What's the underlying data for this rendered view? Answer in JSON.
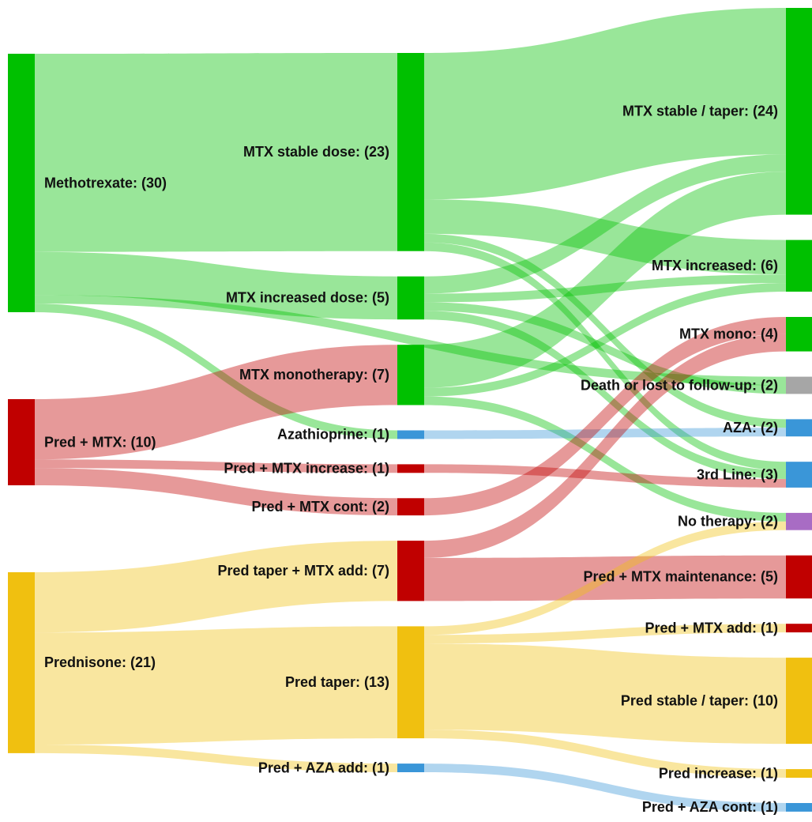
{
  "chart_data": {
    "type": "sankey",
    "nodes": [
      {
        "label": "Methotrexate: (30)",
        "value": 30,
        "color": "#00c000"
      },
      {
        "label": "Pred + MTX: (10)",
        "value": 10,
        "color": "#c00000"
      },
      {
        "label": "Prednisone: (21)",
        "value": 21,
        "color": "#f0c010"
      },
      {
        "label": "MTX stable dose: (23)",
        "value": 23,
        "color": "#00c000"
      },
      {
        "label": "MTX increased dose: (5)",
        "value": 5,
        "color": "#00c000"
      },
      {
        "label": "MTX monotherapy: (7)",
        "value": 7,
        "color": "#00c000"
      },
      {
        "label": "Azathioprine: (1)",
        "value": 1,
        "color": "#3a96d8"
      },
      {
        "label": "Pred + MTX increase: (1)",
        "value": 1,
        "color": "#c00000"
      },
      {
        "label": "Pred + MTX cont: (2)",
        "value": 2,
        "color": "#c00000"
      },
      {
        "label": "Pred taper + MTX add: (7)",
        "value": 7,
        "color": "#c00000"
      },
      {
        "label": "Pred taper: (13)",
        "value": 13,
        "color": "#f0c010"
      },
      {
        "label": "Pred + AZA add: (1)",
        "value": 1,
        "color": "#3a96d8"
      },
      {
        "label": "MTX stable / taper: (24)",
        "value": 24,
        "color": "#00c000"
      },
      {
        "label": "MTX increased: (6)",
        "value": 6,
        "color": "#00c000"
      },
      {
        "label": "MTX mono: (4)",
        "value": 4,
        "color": "#00c000"
      },
      {
        "label": "Death or lost to follow-up: (2)",
        "value": 2,
        "color": "#a6a6a6"
      },
      {
        "label": "AZA: (2)",
        "value": 2,
        "color": "#3a96d8"
      },
      {
        "label": "3rd Line: (3)",
        "value": 3,
        "color": "#3a96d8"
      },
      {
        "label": "No therapy: (2)",
        "value": 2,
        "color": "#a86cc4"
      },
      {
        "label": "Pred + MTX maintenance: (5)",
        "value": 5,
        "color": "#c00000"
      },
      {
        "label": "Pred + MTX add: (1)",
        "value": 1,
        "color": "#c00000"
      },
      {
        "label": "Pred stable / taper: (10)",
        "value": 10,
        "color": "#f0c010"
      },
      {
        "label": "Pred increase: (1)",
        "value": 1,
        "color": "#f0c010"
      },
      {
        "label": "Pred + AZA cont: (1)",
        "value": 1,
        "color": "#3a96d8"
      }
    ],
    "links": [
      {
        "source": 0,
        "target": 3,
        "value": 23
      },
      {
        "source": 0,
        "target": 4,
        "value": 5
      },
      {
        "source": 0,
        "target": 15,
        "value": 1
      },
      {
        "source": 0,
        "target": 6,
        "value": 1
      },
      {
        "source": 1,
        "target": 5,
        "value": 7
      },
      {
        "source": 1,
        "target": 7,
        "value": 1
      },
      {
        "source": 1,
        "target": 8,
        "value": 2
      },
      {
        "source": 2,
        "target": 9,
        "value": 7
      },
      {
        "source": 2,
        "target": 10,
        "value": 13
      },
      {
        "source": 2,
        "target": 11,
        "value": 1
      },
      {
        "source": 3,
        "target": 12,
        "value": 17
      },
      {
        "source": 3,
        "target": 13,
        "value": 4
      },
      {
        "source": 3,
        "target": 16,
        "value": 1
      },
      {
        "source": 3,
        "target": 17,
        "value": 1
      },
      {
        "source": 4,
        "target": 12,
        "value": 2
      },
      {
        "source": 4,
        "target": 13,
        "value": 1
      },
      {
        "source": 4,
        "target": 15,
        "value": 1
      },
      {
        "source": 4,
        "target": 17,
        "value": 1
      },
      {
        "source": 5,
        "target": 12,
        "value": 5
      },
      {
        "source": 5,
        "target": 13,
        "value": 1
      },
      {
        "source": 5,
        "target": 18,
        "value": 1
      },
      {
        "source": 6,
        "target": 16,
        "value": 1
      },
      {
        "source": 7,
        "target": 17,
        "value": 1
      },
      {
        "source": 8,
        "target": 14,
        "value": 2
      },
      {
        "source": 9,
        "target": 14,
        "value": 2
      },
      {
        "source": 9,
        "target": 19,
        "value": 5
      },
      {
        "source": 10,
        "target": 18,
        "value": 1
      },
      {
        "source": 10,
        "target": 20,
        "value": 1
      },
      {
        "source": 10,
        "target": 21,
        "value": 10
      },
      {
        "source": 10,
        "target": 22,
        "value": 1
      },
      {
        "source": 11,
        "target": 23,
        "value": 1
      }
    ],
    "link_opacity": 0.4
  }
}
